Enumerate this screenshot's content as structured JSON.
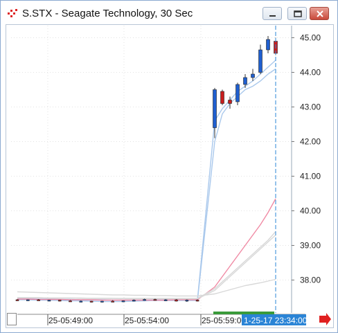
{
  "window": {
    "title": "S.STX - Seagate Technology, 30 Sec"
  },
  "colors": {
    "up_candle": "#1f5fd0",
    "down_candle": "#c81e1e",
    "ma_light_blue": "#a9c8ec",
    "ma_pink": "#f08aa4",
    "ma_gray": "#d8d8d8",
    "cursor_line": "#2a84d6",
    "time_label_bg": "#2a84d6",
    "session_bar": "#3a9a3a",
    "nav_arrow": "#e02020"
  },
  "chart_data": {
    "type": "candlestick",
    "y_ticks": [
      "45.00",
      "44.00",
      "43.00",
      "42.00",
      "41.00",
      "40.00",
      "39.00",
      "38.00"
    ],
    "ylim": [
      37.05,
      45.35
    ],
    "x_ticks": [
      "25-05:49:00",
      "25-05:54:00",
      "25-05:59:00"
    ],
    "cursor_time_label": "1-25-17 23:34:00",
    "grid": true,
    "candles": [
      {
        "o": 37.43,
        "h": 37.45,
        "l": 37.4,
        "c": 37.42
      },
      {
        "o": 37.42,
        "h": 37.44,
        "l": 37.4,
        "c": 37.43
      },
      {
        "o": 37.43,
        "h": 37.45,
        "l": 37.4,
        "c": 37.41
      },
      {
        "o": 37.41,
        "h": 37.43,
        "l": 37.39,
        "c": 37.42
      },
      {
        "o": 37.42,
        "h": 37.43,
        "l": 37.38,
        "c": 37.4
      },
      {
        "o": 37.4,
        "h": 37.42,
        "l": 37.37,
        "c": 37.38
      },
      {
        "o": 37.38,
        "h": 37.41,
        "l": 37.36,
        "c": 37.39
      },
      {
        "o": 37.39,
        "h": 37.4,
        "l": 37.35,
        "c": 37.37
      },
      {
        "o": 37.37,
        "h": 37.4,
        "l": 37.35,
        "c": 37.39
      },
      {
        "o": 37.39,
        "h": 37.42,
        "l": 37.36,
        "c": 37.38
      },
      {
        "o": 37.38,
        "h": 37.41,
        "l": 37.36,
        "c": 37.4
      },
      {
        "o": 37.4,
        "h": 37.44,
        "l": 37.38,
        "c": 37.42
      },
      {
        "o": 37.42,
        "h": 37.46,
        "l": 37.4,
        "c": 37.44
      },
      {
        "o": 37.44,
        "h": 37.46,
        "l": 37.41,
        "c": 37.42
      },
      {
        "o": 37.42,
        "h": 37.45,
        "l": 37.39,
        "c": 37.43
      },
      {
        "o": 37.43,
        "h": 37.45,
        "l": 37.38,
        "c": 37.39
      },
      {
        "o": 37.39,
        "h": 37.44,
        "l": 37.37,
        "c": 37.42
      },
      {
        "o": 37.42,
        "h": 37.44,
        "l": 37.38,
        "c": 37.4
      },
      {
        "o": 42.4,
        "h": 43.55,
        "l": 42.1,
        "c": 43.5
      },
      {
        "o": 43.45,
        "h": 43.5,
        "l": 43.05,
        "c": 43.1
      },
      {
        "o": 43.2,
        "h": 43.3,
        "l": 42.95,
        "c": 43.1
      },
      {
        "o": 43.15,
        "h": 43.7,
        "l": 43.05,
        "c": 43.65
      },
      {
        "o": 43.65,
        "h": 43.95,
        "l": 43.55,
        "c": 43.85
      },
      {
        "o": 43.85,
        "h": 44.1,
        "l": 43.75,
        "c": 43.95
      },
      {
        "o": 44.0,
        "h": 44.8,
        "l": 43.95,
        "c": 44.65
      },
      {
        "o": 44.65,
        "h": 45.05,
        "l": 44.55,
        "c": 44.95
      },
      {
        "o": 44.9,
        "h": 45.0,
        "l": 44.5,
        "c": 44.55
      }
    ],
    "ma_series": [
      {
        "color_key": "ma_light_blue",
        "values": [
          37.46,
          37.46,
          37.45,
          37.45,
          37.44,
          37.44,
          37.43,
          37.43,
          37.43,
          37.42,
          37.42,
          37.42,
          37.42,
          37.43,
          37.43,
          37.43,
          37.43,
          37.43,
          42.6,
          42.95,
          43.2,
          43.45,
          43.6,
          43.75,
          43.95,
          44.15,
          44.35
        ]
      },
      {
        "color_key": "ma_light_blue",
        "values": [
          37.43,
          37.43,
          37.42,
          37.42,
          37.41,
          37.4,
          37.4,
          37.39,
          37.38,
          37.38,
          37.38,
          37.39,
          37.4,
          37.41,
          37.41,
          37.41,
          37.41,
          37.41,
          42.0,
          42.8,
          43.1,
          43.3,
          43.5,
          43.6,
          43.75,
          43.95,
          44.1
        ]
      },
      {
        "color_key": "ma_pink",
        "values": [
          37.45,
          37.45,
          37.44,
          37.44,
          37.44,
          37.43,
          37.43,
          37.43,
          37.42,
          37.42,
          37.42,
          37.42,
          37.42,
          37.42,
          37.42,
          37.43,
          37.43,
          37.43,
          37.8,
          38.1,
          38.4,
          38.7,
          39.0,
          39.3,
          39.6,
          39.95,
          40.35
        ]
      },
      {
        "color_key": "ma_gray",
        "values": [
          37.49,
          37.49,
          37.49,
          37.48,
          37.48,
          37.48,
          37.47,
          37.47,
          37.47,
          37.47,
          37.46,
          37.46,
          37.46,
          37.46,
          37.46,
          37.46,
          37.46,
          37.46,
          37.7,
          37.9,
          38.1,
          38.3,
          38.5,
          38.7,
          38.9,
          39.1,
          39.3
        ]
      },
      {
        "color_key": "ma_gray",
        "values": [
          37.49,
          37.49,
          37.49,
          37.48,
          37.48,
          37.48,
          37.48,
          37.47,
          37.47,
          37.47,
          37.47,
          37.47,
          37.47,
          37.47,
          37.47,
          37.47,
          37.47,
          37.47,
          37.75,
          37.95,
          38.15,
          38.35,
          38.55,
          38.75,
          38.95,
          39.15,
          39.4
        ]
      },
      {
        "color_key": "ma_gray",
        "values": [
          37.66,
          37.65,
          37.64,
          37.63,
          37.62,
          37.61,
          37.6,
          37.59,
          37.58,
          37.57,
          37.57,
          37.56,
          37.56,
          37.55,
          37.55,
          37.54,
          37.54,
          37.54,
          37.6,
          37.66,
          37.72,
          37.78,
          37.84,
          37.88,
          37.92,
          37.97,
          38.02
        ]
      }
    ]
  }
}
